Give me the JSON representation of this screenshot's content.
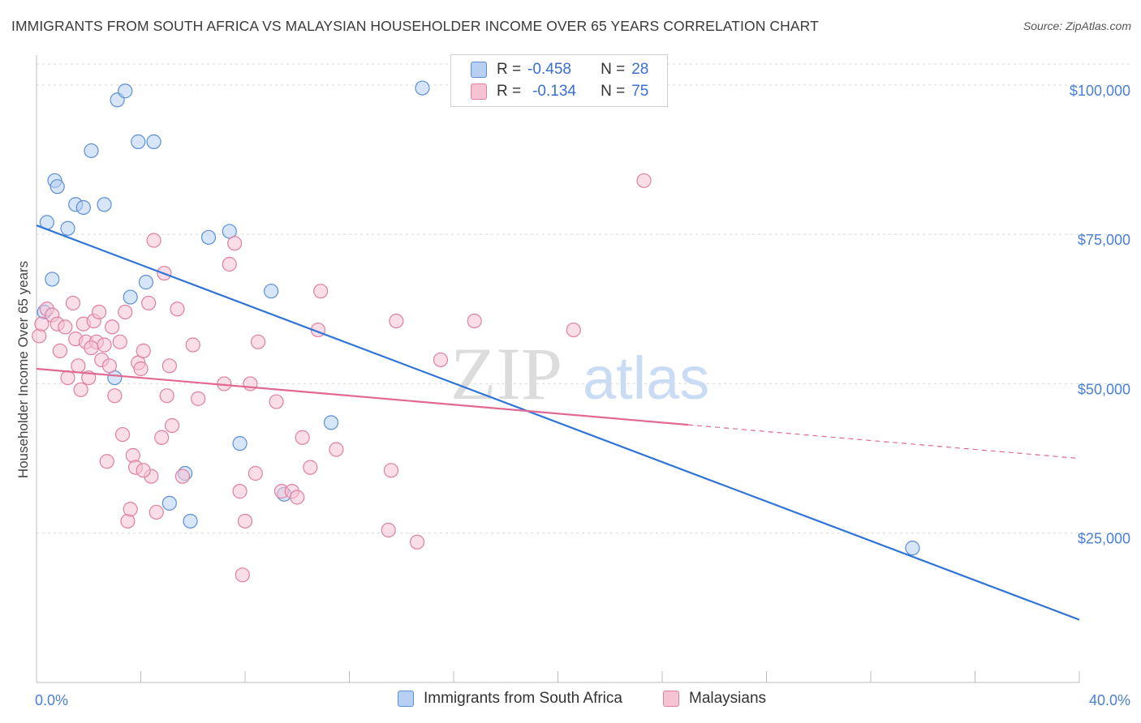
{
  "title": "IMMIGRANTS FROM SOUTH AFRICA VS MALAYSIAN HOUSEHOLDER INCOME OVER 65 YEARS CORRELATION CHART",
  "source": "Source: ZipAtlas.com",
  "watermark": {
    "zip": "ZIP",
    "atlas": "atlas"
  },
  "colors": {
    "blue_fill": "#b7cff2",
    "blue_stroke": "#5b8fd8",
    "blue_line": "#2f74d6",
    "pink_fill": "#f6c3d3",
    "pink_stroke": "#e07fa0",
    "pink_line": "#e06893",
    "tick_text": "#4a7fd6",
    "grid": "#d9d9d9"
  },
  "legend": {
    "rows": [
      {
        "r_label": "R =",
        "r_value": "-0.458",
        "n_label": "N =",
        "n_value": "28"
      },
      {
        "r_label": "R =",
        "r_value": "-0.134",
        "n_label": "N =",
        "n_value": "75"
      }
    ]
  },
  "bottom_legend": {
    "series_a": "Immigrants from South Africa",
    "series_b": "Malaysians"
  },
  "chart_data": {
    "type": "scatter",
    "xlabel": "",
    "ylabel": "Householder Income Over 65 years",
    "xlim": [
      0,
      40
    ],
    "ylim": [
      0,
      105000
    ],
    "x_tick_labels": [
      "0.0%",
      "40.0%"
    ],
    "y_ticks": [
      {
        "value": 25000,
        "label": "$25,000"
      },
      {
        "value": 50000,
        "label": "$50,000"
      },
      {
        "value": 75000,
        "label": "$75,000"
      },
      {
        "value": 100000,
        "label": "$100,000"
      }
    ],
    "grid": true,
    "series": [
      {
        "name": "Immigrants from South Africa",
        "color": "blue",
        "trend": {
          "x0": 0,
          "y0": 76500,
          "x1": 40,
          "y1": 10500,
          "solid_to": 40
        },
        "points": [
          [
            0.3,
            62000
          ],
          [
            0.4,
            77000
          ],
          [
            0.7,
            84000
          ],
          [
            0.8,
            83000
          ],
          [
            1.2,
            76000
          ],
          [
            1.5,
            80000
          ],
          [
            1.8,
            79500
          ],
          [
            2.1,
            89000
          ],
          [
            2.6,
            80000
          ],
          [
            3.1,
            97500
          ],
          [
            3.4,
            99000
          ],
          [
            3.0,
            51000
          ],
          [
            3.6,
            64500
          ],
          [
            3.9,
            90500
          ],
          [
            4.2,
            67000
          ],
          [
            4.5,
            90500
          ],
          [
            5.1,
            30000
          ],
          [
            5.7,
            35000
          ],
          [
            5.9,
            27000
          ],
          [
            6.6,
            74500
          ],
          [
            7.4,
            75500
          ],
          [
            7.8,
            40000
          ],
          [
            9.0,
            65500
          ],
          [
            9.5,
            31500
          ],
          [
            11.3,
            43500
          ],
          [
            14.8,
            99500
          ],
          [
            0.6,
            67500
          ],
          [
            33.6,
            22500
          ]
        ]
      },
      {
        "name": "Malaysians",
        "color": "pink",
        "trend": {
          "x0": 0,
          "y0": 52500,
          "x1": 40,
          "y1": 37500,
          "solid_to": 25
        },
        "points": [
          [
            0.1,
            58000
          ],
          [
            0.2,
            60000
          ],
          [
            0.4,
            62500
          ],
          [
            0.6,
            61500
          ],
          [
            0.8,
            60000
          ],
          [
            0.9,
            55500
          ],
          [
            1.1,
            59500
          ],
          [
            1.2,
            51000
          ],
          [
            1.4,
            63500
          ],
          [
            1.5,
            57500
          ],
          [
            1.6,
            53000
          ],
          [
            1.7,
            49000
          ],
          [
            1.8,
            60000
          ],
          [
            1.9,
            57000
          ],
          [
            2.0,
            51000
          ],
          [
            2.2,
            60500
          ],
          [
            2.3,
            57000
          ],
          [
            2.4,
            62000
          ],
          [
            2.5,
            54000
          ],
          [
            2.6,
            56500
          ],
          [
            2.7,
            37000
          ],
          [
            2.8,
            53000
          ],
          [
            2.9,
            59500
          ],
          [
            3.0,
            48000
          ],
          [
            3.2,
            57000
          ],
          [
            3.3,
            41500
          ],
          [
            3.4,
            62000
          ],
          [
            3.5,
            27000
          ],
          [
            3.6,
            29000
          ],
          [
            3.7,
            38000
          ],
          [
            3.8,
            36000
          ],
          [
            3.9,
            53500
          ],
          [
            4.0,
            52500
          ],
          [
            4.1,
            55500
          ],
          [
            4.3,
            63500
          ],
          [
            4.4,
            34500
          ],
          [
            4.5,
            74000
          ],
          [
            4.6,
            28500
          ],
          [
            4.8,
            41000
          ],
          [
            4.9,
            68500
          ],
          [
            5.0,
            48000
          ],
          [
            5.1,
            53000
          ],
          [
            5.2,
            43000
          ],
          [
            5.4,
            62500
          ],
          [
            5.6,
            34500
          ],
          [
            6.0,
            56500
          ],
          [
            6.2,
            47500
          ],
          [
            7.2,
            50000
          ],
          [
            7.4,
            70000
          ],
          [
            7.6,
            73500
          ],
          [
            7.8,
            32000
          ],
          [
            7.9,
            18000
          ],
          [
            8.0,
            27000
          ],
          [
            8.2,
            50000
          ],
          [
            8.4,
            35000
          ],
          [
            8.5,
            57000
          ],
          [
            9.2,
            47000
          ],
          [
            9.4,
            32000
          ],
          [
            9.8,
            32000
          ],
          [
            10.0,
            31000
          ],
          [
            10.2,
            41000
          ],
          [
            10.5,
            36000
          ],
          [
            10.8,
            59000
          ],
          [
            10.9,
            65500
          ],
          [
            11.5,
            39000
          ],
          [
            13.6,
            35500
          ],
          [
            13.8,
            60500
          ],
          [
            13.5,
            25500
          ],
          [
            14.6,
            23500
          ],
          [
            15.5,
            54000
          ],
          [
            16.8,
            60500
          ],
          [
            20.6,
            59000
          ],
          [
            23.3,
            84000
          ],
          [
            4.1,
            35500
          ],
          [
            2.1,
            56000
          ]
        ]
      }
    ]
  }
}
